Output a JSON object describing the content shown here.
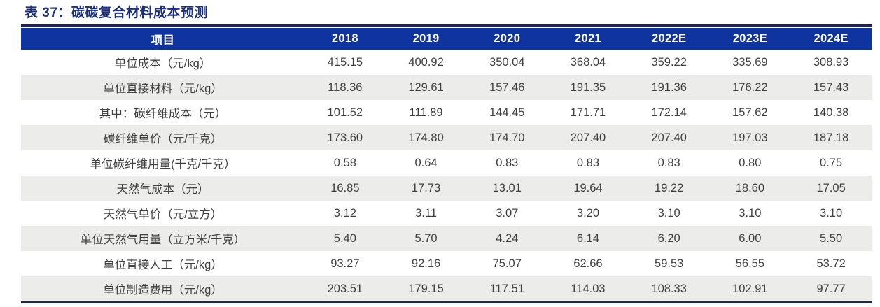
{
  "title": "表 37：碳碳复合材料成本预测",
  "colors": {
    "title": "#1B2F7E",
    "header_bg": "#0F34A0",
    "header_text": "#FFFFFF",
    "rule": "#17246A",
    "stripe": "#ECECEA",
    "body_text": "#3F3F3F"
  },
  "chart_data": {
    "type": "table",
    "title": "表 37：碳碳复合材料成本预测",
    "columns": [
      "项目",
      "2018",
      "2019",
      "2020",
      "2021",
      "2022E",
      "2023E",
      "2024E"
    ],
    "rows": [
      {
        "label": "单位成本（元/kg）",
        "values": [
          "415.15",
          "400.92",
          "350.04",
          "368.04",
          "359.22",
          "335.69",
          "308.93"
        ]
      },
      {
        "label": "单位直接材料（元/kg）",
        "values": [
          "118.36",
          "129.61",
          "157.46",
          "191.35",
          "191.36",
          "176.22",
          "157.43"
        ]
      },
      {
        "label": "其中：碳纤维成本（元）",
        "values": [
          "101.52",
          "111.89",
          "144.45",
          "171.71",
          "172.14",
          "157.62",
          "140.38"
        ]
      },
      {
        "label": "碳纤维单价（元/千克）",
        "values": [
          "173.60",
          "174.80",
          "174.70",
          "207.40",
          "207.40",
          "197.03",
          "187.18"
        ]
      },
      {
        "label": "单位碳纤维用量(千克/千克）",
        "values": [
          "0.58",
          "0.64",
          "0.83",
          "0.83",
          "0.83",
          "0.80",
          "0.75"
        ]
      },
      {
        "label": "天然气成本（元）",
        "values": [
          "16.85",
          "17.73",
          "13.01",
          "19.64",
          "19.22",
          "18.60",
          "17.05"
        ]
      },
      {
        "label": "天然气单价（元/立方）",
        "values": [
          "3.12",
          "3.11",
          "3.07",
          "3.20",
          "3.10",
          "3.10",
          "3.10"
        ]
      },
      {
        "label": "单位天然气用量（立方米/千克）",
        "values": [
          "5.40",
          "5.70",
          "4.24",
          "6.14",
          "6.20",
          "6.00",
          "5.50"
        ]
      },
      {
        "label": "单位直接人工（元/kg）",
        "values": [
          "93.27",
          "92.16",
          "75.07",
          "62.66",
          "59.53",
          "56.55",
          "53.72"
        ]
      },
      {
        "label": "单位制造费用（元/kg）",
        "values": [
          "203.51",
          "179.15",
          "117.51",
          "114.03",
          "108.33",
          "102.91",
          "97.77"
        ]
      }
    ]
  }
}
